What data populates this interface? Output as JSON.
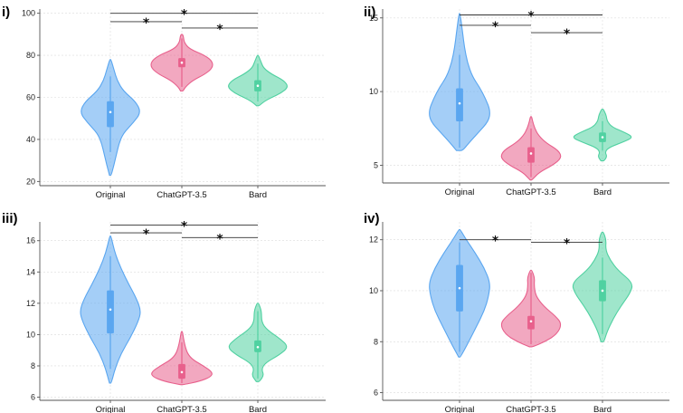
{
  "chart_data": [
    {
      "type": "violin",
      "panel_label": "i)",
      "categories": [
        "Original",
        "ChatGPT-3.5",
        "Bard"
      ],
      "colors": [
        "#5aa6f0",
        "#e8608c",
        "#50d1a1"
      ],
      "ylim": [
        18,
        102
      ],
      "yticks": [
        20,
        40,
        60,
        80,
        100
      ],
      "ytick_labels": [
        "20",
        "40",
        "60",
        "80",
        "100"
      ],
      "violins": [
        {
          "ymin": 23,
          "ymax": 78,
          "q1": 46,
          "median": 53,
          "q3": 58,
          "mean": 53,
          "whisker_low": 34,
          "whisker_high": 70,
          "profile": [
            [
              23,
              0.03
            ],
            [
              28,
              0.12
            ],
            [
              33,
              0.2
            ],
            [
              38,
              0.28
            ],
            [
              43,
              0.42
            ],
            [
              48,
              0.75
            ],
            [
              53,
              1.0
            ],
            [
              58,
              0.82
            ],
            [
              63,
              0.42
            ],
            [
              68,
              0.22
            ],
            [
              73,
              0.12
            ],
            [
              78,
              0.02
            ]
          ]
        },
        {
          "ymin": 63,
          "ymax": 90,
          "q1": 74.5,
          "median": 76.5,
          "q3": 78.5,
          "mean": 76.5,
          "whisker_low": 65,
          "whisker_high": 88,
          "profile": [
            [
              63,
              0.04
            ],
            [
              65,
              0.12
            ],
            [
              68,
              0.35
            ],
            [
              71,
              0.75
            ],
            [
              74,
              1.0
            ],
            [
              77,
              1.0
            ],
            [
              80,
              0.75
            ],
            [
              83,
              0.25
            ],
            [
              86,
              0.08
            ],
            [
              89,
              0.05
            ],
            [
              90,
              0.02
            ]
          ]
        },
        {
          "ymin": 56,
          "ymax": 80,
          "q1": 63,
          "median": 65.5,
          "q3": 68,
          "mean": 65.5,
          "whisker_low": 58,
          "whisker_high": 76,
          "profile": [
            [
              56,
              0.04
            ],
            [
              58,
              0.2
            ],
            [
              60,
              0.45
            ],
            [
              62,
              0.75
            ],
            [
              65,
              1.0
            ],
            [
              68,
              0.85
            ],
            [
              71,
              0.45
            ],
            [
              74,
              0.18
            ],
            [
              77,
              0.1
            ],
            [
              80,
              0.02
            ]
          ]
        }
      ],
      "significance": [
        {
          "from": 0,
          "to": 1,
          "y": 96,
          "label": "*"
        },
        {
          "from": 1,
          "to": 2,
          "y": 93,
          "label": "*"
        },
        {
          "from": 0,
          "to": 2,
          "y": 100,
          "label": "*"
        }
      ]
    },
    {
      "type": "violin",
      "panel_label": "ii)",
      "categories": [
        "Original",
        "ChatGPT-3.5",
        "Bard"
      ],
      "colors": [
        "#5aa6f0",
        "#e8608c",
        "#50d1a1"
      ],
      "ylim": [
        3.8,
        15.6
      ],
      "yticks": [
        5,
        10,
        15
      ],
      "ytick_labels": [
        "5",
        "10",
        "15"
      ],
      "violins": [
        {
          "ymin": 6.0,
          "ymax": 15.3,
          "q1": 8.0,
          "median": 9.0,
          "q3": 10.2,
          "mean": 9.2,
          "whisker_low": 6.2,
          "whisker_high": 12.5,
          "profile": [
            [
              6.0,
              0.1
            ],
            [
              6.5,
              0.3
            ],
            [
              7.2,
              0.6
            ],
            [
              8.0,
              0.95
            ],
            [
              8.7,
              1.0
            ],
            [
              9.5,
              0.85
            ],
            [
              10.3,
              0.65
            ],
            [
              11.0,
              0.42
            ],
            [
              12.0,
              0.25
            ],
            [
              13.0,
              0.16
            ],
            [
              14.0,
              0.1
            ],
            [
              15.3,
              0.02
            ]
          ]
        },
        {
          "ymin": 4.0,
          "ymax": 8.3,
          "q1": 5.2,
          "median": 5.7,
          "q3": 6.2,
          "mean": 5.8,
          "whisker_low": 4.2,
          "whisker_high": 7.5,
          "profile": [
            [
              4.0,
              0.03
            ],
            [
              4.5,
              0.25
            ],
            [
              5.0,
              0.7
            ],
            [
              5.5,
              1.0
            ],
            [
              6.0,
              0.9
            ],
            [
              6.5,
              0.5
            ],
            [
              7.0,
              0.25
            ],
            [
              7.5,
              0.12
            ],
            [
              8.0,
              0.05
            ],
            [
              8.3,
              0.02
            ]
          ]
        },
        {
          "ymin": 5.3,
          "ymax": 8.8,
          "q1": 6.6,
          "median": 6.9,
          "q3": 7.2,
          "mean": 6.9,
          "whisker_low": 6.0,
          "whisker_high": 8.0,
          "profile": [
            [
              5.3,
              0.05
            ],
            [
              5.6,
              0.15
            ],
            [
              5.9,
              0.08
            ],
            [
              6.2,
              0.2
            ],
            [
              6.6,
              0.7
            ],
            [
              6.9,
              1.0
            ],
            [
              7.2,
              0.75
            ],
            [
              7.6,
              0.3
            ],
            [
              8.0,
              0.15
            ],
            [
              8.4,
              0.12
            ],
            [
              8.8,
              0.03
            ]
          ]
        }
      ],
      "significance": [
        {
          "from": 0,
          "to": 1,
          "y": 14.5,
          "label": "*"
        },
        {
          "from": 1,
          "to": 2,
          "y": 14.0,
          "label": "*"
        },
        {
          "from": 0,
          "to": 2,
          "y": 15.2,
          "label": "*"
        }
      ]
    },
    {
      "type": "violin",
      "panel_label": "iii)",
      "categories": [
        "Original",
        "ChatGPT-3.5",
        "Bard"
      ],
      "colors": [
        "#5aa6f0",
        "#e8608c",
        "#50d1a1"
      ],
      "ylim": [
        5.8,
        17.2
      ],
      "yticks": [
        6,
        8,
        10,
        12,
        14,
        16
      ],
      "ytick_labels": [
        "6",
        "8",
        "10",
        "12",
        "14",
        "16"
      ],
      "violins": [
        {
          "ymin": 6.9,
          "ymax": 16.3,
          "q1": 10.1,
          "median": 11.7,
          "q3": 12.8,
          "mean": 11.6,
          "whisker_low": 7.8,
          "whisker_high": 15.0,
          "profile": [
            [
              6.9,
              0.03
            ],
            [
              7.8,
              0.15
            ],
            [
              8.8,
              0.35
            ],
            [
              9.8,
              0.65
            ],
            [
              10.8,
              0.9
            ],
            [
              11.5,
              1.0
            ],
            [
              12.3,
              0.85
            ],
            [
              13.2,
              0.6
            ],
            [
              14.2,
              0.35
            ],
            [
              15.2,
              0.15
            ],
            [
              16.3,
              0.02
            ]
          ]
        },
        {
          "ymin": 6.8,
          "ymax": 10.2,
          "q1": 7.2,
          "median": 7.5,
          "q3": 8.1,
          "mean": 7.6,
          "whisker_low": 6.9,
          "whisker_high": 9.5,
          "profile": [
            [
              6.8,
              0.05
            ],
            [
              7.0,
              0.55
            ],
            [
              7.3,
              0.95
            ],
            [
              7.6,
              1.0
            ],
            [
              8.0,
              0.7
            ],
            [
              8.4,
              0.35
            ],
            [
              8.8,
              0.18
            ],
            [
              9.3,
              0.1
            ],
            [
              9.8,
              0.05
            ],
            [
              10.2,
              0.02
            ]
          ]
        },
        {
          "ymin": 7.0,
          "ymax": 12.0,
          "q1": 8.9,
          "median": 9.2,
          "q3": 9.6,
          "mean": 9.2,
          "whisker_low": 7.2,
          "whisker_high": 11.5,
          "profile": [
            [
              7.0,
              0.05
            ],
            [
              7.4,
              0.2
            ],
            [
              7.8,
              0.12
            ],
            [
              8.2,
              0.25
            ],
            [
              8.7,
              0.7
            ],
            [
              9.2,
              1.0
            ],
            [
              9.7,
              0.75
            ],
            [
              10.3,
              0.3
            ],
            [
              10.8,
              0.12
            ],
            [
              11.5,
              0.12
            ],
            [
              12.0,
              0.03
            ]
          ]
        }
      ],
      "significance": [
        {
          "from": 0,
          "to": 1,
          "y": 16.5,
          "label": "*"
        },
        {
          "from": 1,
          "to": 2,
          "y": 16.2,
          "label": "*"
        },
        {
          "from": 0,
          "to": 2,
          "y": 17.0,
          "label": "*"
        }
      ]
    },
    {
      "type": "violin",
      "panel_label": "iv)",
      "categories": [
        "Original",
        "ChatGPT-3.5",
        "Bard"
      ],
      "colors": [
        "#5aa6f0",
        "#e8608c",
        "#50d1a1"
      ],
      "ylim": [
        5.7,
        12.7
      ],
      "yticks": [
        6,
        8,
        10,
        12
      ],
      "ytick_labels": [
        "6",
        "8",
        "10",
        "12"
      ],
      "violins": [
        {
          "ymin": 7.4,
          "ymax": 12.4,
          "q1": 9.2,
          "median": 10.1,
          "q3": 11.0,
          "mean": 10.1,
          "whisker_low": 7.6,
          "whisker_high": 11.9,
          "profile": [
            [
              7.4,
              0.03
            ],
            [
              8.0,
              0.3
            ],
            [
              8.6,
              0.55
            ],
            [
              9.2,
              0.8
            ],
            [
              9.8,
              0.95
            ],
            [
              10.3,
              1.0
            ],
            [
              10.9,
              0.8
            ],
            [
              11.5,
              0.5
            ],
            [
              12.0,
              0.22
            ],
            [
              12.4,
              0.02
            ]
          ]
        },
        {
          "ymin": 7.8,
          "ymax": 10.8,
          "q1": 8.5,
          "median": 8.8,
          "q3": 9.0,
          "mean": 8.8,
          "whisker_low": 7.9,
          "whisker_high": 10.7,
          "profile": [
            [
              7.8,
              0.05
            ],
            [
              8.0,
              0.45
            ],
            [
              8.3,
              0.85
            ],
            [
              8.7,
              1.0
            ],
            [
              9.0,
              0.8
            ],
            [
              9.4,
              0.4
            ],
            [
              9.8,
              0.15
            ],
            [
              10.2,
              0.1
            ],
            [
              10.5,
              0.12
            ],
            [
              10.8,
              0.03
            ]
          ]
        },
        {
          "ymin": 8.0,
          "ymax": 12.3,
          "q1": 9.6,
          "median": 10.0,
          "q3": 10.4,
          "mean": 10.0,
          "whisker_low": 8.3,
          "whisker_high": 11.3,
          "profile": [
            [
              8.0,
              0.05
            ],
            [
              8.4,
              0.15
            ],
            [
              8.9,
              0.35
            ],
            [
              9.4,
              0.6
            ],
            [
              9.9,
              0.9
            ],
            [
              10.3,
              1.0
            ],
            [
              10.8,
              0.5
            ],
            [
              11.2,
              0.25
            ],
            [
              11.6,
              0.1
            ],
            [
              12.0,
              0.12
            ],
            [
              12.3,
              0.03
            ]
          ]
        }
      ],
      "significance": [
        {
          "from": 0,
          "to": 1,
          "y": 12.0,
          "label": "*"
        },
        {
          "from": 1,
          "to": 2,
          "y": 11.9,
          "label": "*"
        }
      ]
    }
  ]
}
